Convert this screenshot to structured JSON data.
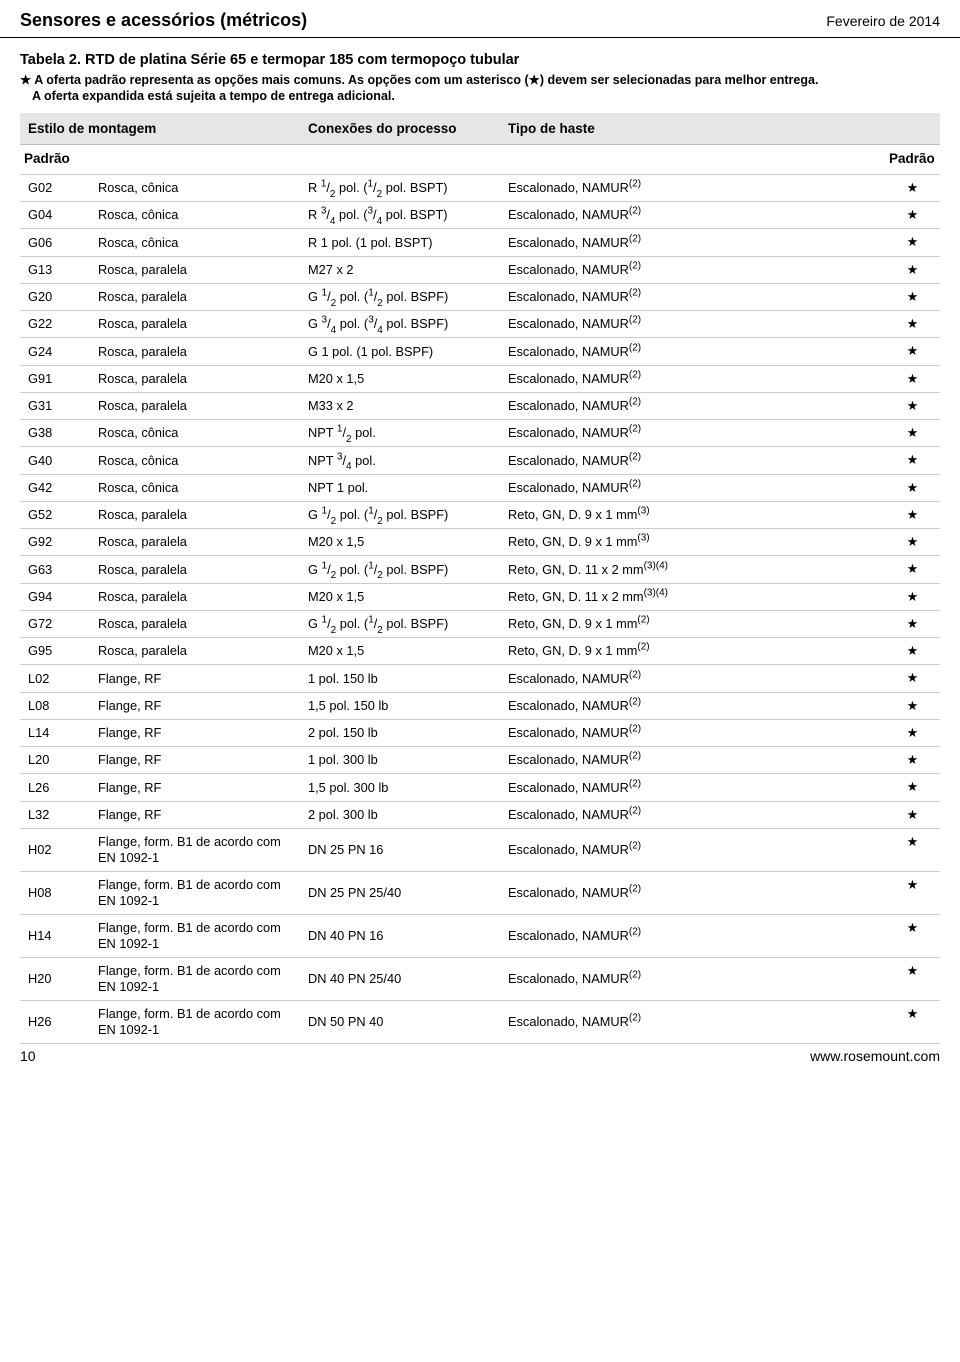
{
  "header": {
    "title": "Sensores e acessórios (métricos)",
    "date": "Fevereiro de 2014"
  },
  "table_title": "Tabela 2. RTD de platina Série 65 e termopar 185 com termopoço tubular",
  "note_main_pre": "★",
  "note_main": "A oferta padrão representa as opções mais comuns. As opções com um asterisco (★) devem ser selecionadas para melhor entrega.",
  "note_sub": "A oferta expandida está sujeita a tempo de entrega adicional.",
  "columns": {
    "c1": "Estilo de montagem",
    "c2": "Conexões do processo",
    "c3": "Tipo de haste"
  },
  "padrao_left": "Padrão",
  "padrao_right": "Padrão",
  "rows": [
    {
      "code": "G02",
      "mount": "Rosca, cônica",
      "conn_html": "R <span class='frac'><sup>1</sup>/<sub>2</sub></span> pol. (<span class='frac'><sup>1</sup>/<sub>2</sub></span> pol. BSPT)",
      "stem_html": "Escalonado, NAMUR<sup>(2)</sup>",
      "star": "★"
    },
    {
      "code": "G04",
      "mount": "Rosca, cônica",
      "conn_html": "R <span class='frac'><sup>3</sup>/<sub>4</sub></span> pol. (<span class='frac'><sup>3</sup>/<sub>4</sub></span> pol. BSPT)",
      "stem_html": "Escalonado, NAMUR<sup>(2)</sup>",
      "star": "★"
    },
    {
      "code": "G06",
      "mount": "Rosca, cônica",
      "conn_html": "R 1 pol. (1 pol. BSPT)",
      "stem_html": "Escalonado, NAMUR<sup>(2)</sup>",
      "star": "★"
    },
    {
      "code": "G13",
      "mount": "Rosca, paralela",
      "conn_html": "M27 x 2",
      "stem_html": "Escalonado, NAMUR<sup>(2)</sup>",
      "star": "★"
    },
    {
      "code": "G20",
      "mount": "Rosca, paralela",
      "conn_html": "G <span class='frac'><sup>1</sup>/<sub>2</sub></span> pol. (<span class='frac'><sup>1</sup>/<sub>2</sub></span> pol. BSPF)",
      "stem_html": "Escalonado, NAMUR<sup>(2)</sup>",
      "star": "★"
    },
    {
      "code": "G22",
      "mount": "Rosca, paralela",
      "conn_html": "G <span class='frac'><sup>3</sup>/<sub>4</sub></span> pol. (<span class='frac'><sup>3</sup>/<sub>4</sub></span> pol. BSPF)",
      "stem_html": "Escalonado, NAMUR<sup>(2)</sup>",
      "star": "★"
    },
    {
      "code": "G24",
      "mount": "Rosca, paralela",
      "conn_html": "G 1 pol. (1 pol. BSPF)",
      "stem_html": "Escalonado, NAMUR<sup>(2)</sup>",
      "star": "★"
    },
    {
      "code": "G91",
      "mount": "Rosca, paralela",
      "conn_html": "M20 x 1,5",
      "stem_html": "Escalonado, NAMUR<sup>(2)</sup>",
      "star": "★"
    },
    {
      "code": "G31",
      "mount": "Rosca, paralela",
      "conn_html": "M33 x 2",
      "stem_html": "Escalonado, NAMUR<sup>(2)</sup>",
      "star": "★"
    },
    {
      "code": "G38",
      "mount": "Rosca, cônica",
      "conn_html": "NPT <span class='frac'><sup>1</sup>/<sub>2</sub></span> pol.",
      "stem_html": "Escalonado, NAMUR<sup>(2)</sup>",
      "star": "★"
    },
    {
      "code": "G40",
      "mount": "Rosca, cônica",
      "conn_html": "NPT <span class='frac'><sup>3</sup>/<sub>4</sub></span> pol.",
      "stem_html": "Escalonado, NAMUR<sup>(2)</sup>",
      "star": "★"
    },
    {
      "code": "G42",
      "mount": "Rosca, cônica",
      "conn_html": "NPT 1 pol.",
      "stem_html": "Escalonado, NAMUR<sup>(2)</sup>",
      "star": "★"
    },
    {
      "code": "G52",
      "mount": "Rosca, paralela",
      "conn_html": "G <span class='frac'><sup>1</sup>/<sub>2</sub></span> pol. (<span class='frac'><sup>1</sup>/<sub>2</sub></span> pol. BSPF)",
      "stem_html": "Reto, GN, D. 9 x 1 mm<sup>(3)</sup>",
      "star": "★"
    },
    {
      "code": "G92",
      "mount": "Rosca, paralela",
      "conn_html": "M20 x 1,5",
      "stem_html": "Reto, GN, D. 9 x 1 mm<sup>(3)</sup>",
      "star": "★"
    },
    {
      "code": "G63",
      "mount": "Rosca, paralela",
      "conn_html": "G <span class='frac'><sup>1</sup>/<sub>2</sub></span> pol. (<span class='frac'><sup>1</sup>/<sub>2</sub></span> pol. BSPF)",
      "stem_html": "Reto, GN, D. 11 x 2 mm<sup>(3)(4)</sup>",
      "star": "★"
    },
    {
      "code": "G94",
      "mount": "Rosca, paralela",
      "conn_html": "M20 x 1,5",
      "stem_html": "Reto, GN, D. 11 x 2 mm<sup>(3)(4)</sup>",
      "star": "★"
    },
    {
      "code": "G72",
      "mount": "Rosca, paralela",
      "conn_html": "G <span class='frac'><sup>1</sup>/<sub>2</sub></span> pol. (<span class='frac'><sup>1</sup>/<sub>2</sub></span> pol. BSPF)",
      "stem_html": "Reto, GN, D. 9 x 1 mm<sup>(2)</sup>",
      "star": "★"
    },
    {
      "code": "G95",
      "mount": "Rosca, paralela",
      "conn_html": "M20 x 1,5",
      "stem_html": "Reto, GN, D. 9 x 1 mm<sup>(2)</sup>",
      "star": "★"
    },
    {
      "code": "L02",
      "mount": "Flange, RF",
      "conn_html": "1 pol. 150 lb",
      "stem_html": "Escalonado, NAMUR<sup>(2)</sup>",
      "star": "★"
    },
    {
      "code": "L08",
      "mount": "Flange, RF",
      "conn_html": "1,5 pol. 150 lb",
      "stem_html": "Escalonado, NAMUR<sup>(2)</sup>",
      "star": "★"
    },
    {
      "code": "L14",
      "mount": "Flange, RF",
      "conn_html": "2 pol. 150 lb",
      "stem_html": "Escalonado, NAMUR<sup>(2)</sup>",
      "star": "★"
    },
    {
      "code": "L20",
      "mount": "Flange, RF",
      "conn_html": "1 pol. 300 lb",
      "stem_html": "Escalonado, NAMUR<sup>(2)</sup>",
      "star": "★"
    },
    {
      "code": "L26",
      "mount": "Flange, RF",
      "conn_html": "1,5 pol. 300 lb",
      "stem_html": "Escalonado, NAMUR<sup>(2)</sup>",
      "star": "★"
    },
    {
      "code": "L32",
      "mount": "Flange, RF",
      "conn_html": "2 pol. 300 lb",
      "stem_html": "Escalonado, NAMUR<sup>(2)</sup>",
      "star": "★"
    },
    {
      "code": "H02",
      "mount": "Flange, form. B1 de acordo com EN 1092-1",
      "conn_html": "DN 25 PN 16",
      "stem_html": "Escalonado, NAMUR<sup>(2)</sup>",
      "star": "★"
    },
    {
      "code": "H08",
      "mount": "Flange, form. B1 de acordo com EN 1092-1",
      "conn_html": "DN 25 PN 25/40",
      "stem_html": "Escalonado, NAMUR<sup>(2)</sup>",
      "star": "★"
    },
    {
      "code": "H14",
      "mount": "Flange, form. B1 de acordo com EN 1092-1",
      "conn_html": "DN 40 PN 16",
      "stem_html": "Escalonado, NAMUR<sup>(2)</sup>",
      "star": "★"
    },
    {
      "code": "H20",
      "mount": "Flange, form. B1 de acordo com EN 1092-1",
      "conn_html": "DN 40 PN 25/40",
      "stem_html": "Escalonado, NAMUR<sup>(2)</sup>",
      "star": "★"
    },
    {
      "code": "H26",
      "mount": "Flange, form. B1 de acordo com EN 1092-1",
      "conn_html": "DN 50 PN 40",
      "stem_html": "Escalonado, NAMUR<sup>(2)</sup>",
      "star": "★"
    }
  ],
  "footer": {
    "page": "10",
    "url": "www.rosemount.com"
  }
}
